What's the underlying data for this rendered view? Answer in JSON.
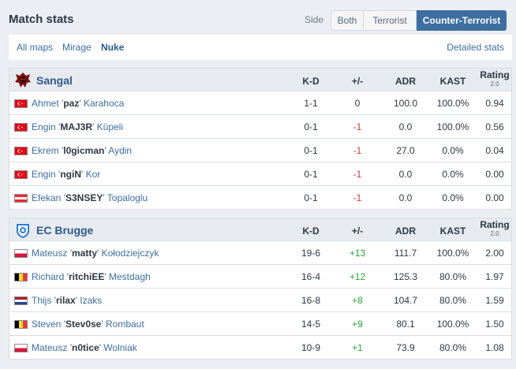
{
  "header": {
    "title": "Match stats",
    "side_label": "Side",
    "side_options": [
      "Both",
      "Terrorist",
      "Counter-Terrorist"
    ],
    "active_side": "Counter-Terrorist"
  },
  "maps": {
    "tabs": [
      "All maps",
      "Mirage",
      "Nuke"
    ],
    "active": "Nuke",
    "detailed_link": "Detailed stats"
  },
  "columns": {
    "kd": "K-D",
    "pm": "+/-",
    "adr": "ADR",
    "kast": "KAST",
    "rating": "Rating",
    "rating_sub": "2.0"
  },
  "colors": {
    "accent": "#3e6ea1",
    "positive": "#2fa43b",
    "negative": "#d23c3c"
  },
  "teams": [
    {
      "name": "Sangal",
      "logo_icon": "sangal-logo-icon",
      "players": [
        {
          "first": "Ahmet",
          "nick": "paz",
          "last": "Karahoca",
          "flag": "turkey-flag-icon",
          "kd": "1-1",
          "pm": "0",
          "adr": "100.0",
          "kast": "100.0%",
          "rating": "0.94"
        },
        {
          "first": "Engin",
          "nick": "MAJ3R",
          "last": "Küpeli",
          "flag": "turkey-flag-icon",
          "kd": "0-1",
          "pm": "-1",
          "adr": "0.0",
          "kast": "100.0%",
          "rating": "0.56"
        },
        {
          "first": "Ekrem",
          "nick": "l0gicman",
          "last": "Aydin",
          "flag": "turkey-flag-icon",
          "kd": "0-1",
          "pm": "-1",
          "adr": "27.0",
          "kast": "0.0%",
          "rating": "0.04"
        },
        {
          "first": "Engin",
          "nick": "ngiN",
          "last": "Kor",
          "flag": "turkey-flag-icon",
          "kd": "0-1",
          "pm": "-1",
          "adr": "0.0",
          "kast": "0.0%",
          "rating": "0.00"
        },
        {
          "first": "Efekan",
          "nick": "S3NSEY",
          "last": "Topaloglu",
          "flag": "austria-flag-icon",
          "kd": "0-1",
          "pm": "-1",
          "adr": "0.0",
          "kast": "0.0%",
          "rating": "0.00"
        }
      ]
    },
    {
      "name": "EC Brugge",
      "logo_icon": "ec-brugge-logo-icon",
      "players": [
        {
          "first": "Mateusz",
          "nick": "matty",
          "last": "Kołodziejczyk",
          "flag": "poland-flag-icon",
          "kd": "19-6",
          "pm": "+13",
          "adr": "111.7",
          "kast": "100.0%",
          "rating": "2.00"
        },
        {
          "first": "Richard",
          "nick": "ritchiEE",
          "last": "Mestdagh",
          "flag": "belgium-flag-icon",
          "kd": "16-4",
          "pm": "+12",
          "adr": "125.3",
          "kast": "80.0%",
          "rating": "1.97"
        },
        {
          "first": "Thijs",
          "nick": "rilax",
          "last": "Izaks",
          "flag": "netherlands-flag-icon",
          "kd": "16-8",
          "pm": "+8",
          "adr": "104.7",
          "kast": "80.0%",
          "rating": "1.59"
        },
        {
          "first": "Steven",
          "nick": "Stev0se",
          "last": "Rombaut",
          "flag": "belgium-flag-icon",
          "kd": "14-5",
          "pm": "+9",
          "adr": "80.1",
          "kast": "100.0%",
          "rating": "1.50"
        },
        {
          "first": "Mateusz",
          "nick": "n0tice",
          "last": "Wolniak",
          "flag": "poland-flag-icon",
          "kd": "10-9",
          "pm": "+1",
          "adr": "73.9",
          "kast": "80.0%",
          "rating": "1.08"
        }
      ]
    }
  ]
}
